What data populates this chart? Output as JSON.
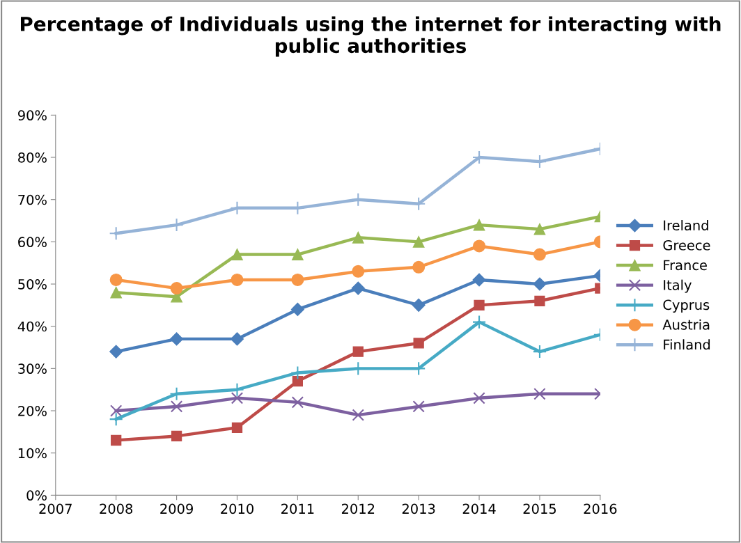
{
  "chart_data": {
    "type": "line",
    "title": "Percentage of Individuals using the internet for interacting with public authorities",
    "x": [
      2008,
      2009,
      2010,
      2011,
      2012,
      2013,
      2014,
      2015,
      2016
    ],
    "xlim": [
      2007,
      2016
    ],
    "xticks": [
      2007,
      2008,
      2009,
      2010,
      2011,
      2012,
      2013,
      2014,
      2015,
      2016
    ],
    "ylim": [
      0,
      90
    ],
    "yticks": [
      {
        "value": 0,
        "label": "0%"
      },
      {
        "value": 10,
        "label": "10%"
      },
      {
        "value": 20,
        "label": "20%"
      },
      {
        "value": 30,
        "label": "30%"
      },
      {
        "value": 40,
        "label": "40%"
      },
      {
        "value": 50,
        "label": "50%"
      },
      {
        "value": 60,
        "label": "60%"
      },
      {
        "value": 70,
        "label": "70%"
      },
      {
        "value": 80,
        "label": "80%"
      },
      {
        "value": 90,
        "label": "90%"
      }
    ],
    "grid": false,
    "legend": "right",
    "line_style": "solid",
    "series": [
      {
        "name": "Ireland",
        "color": "#4a7ebb",
        "marker": "diamond",
        "values": [
          34,
          37,
          37,
          44,
          49,
          45,
          51,
          50,
          52
        ]
      },
      {
        "name": "Greece",
        "color": "#be4b48",
        "marker": "square",
        "values": [
          13,
          14,
          16,
          27,
          34,
          36,
          45,
          46,
          49
        ]
      },
      {
        "name": "France",
        "color": "#98b954",
        "marker": "triangle",
        "values": [
          48,
          47,
          57,
          57,
          61,
          60,
          64,
          63,
          66
        ]
      },
      {
        "name": "Italy",
        "color": "#7d60a0",
        "marker": "x",
        "values": [
          20,
          21,
          23,
          22,
          19,
          21,
          23,
          24,
          24
        ]
      },
      {
        "name": "Cyprus",
        "color": "#46aac5",
        "marker": "cross",
        "values": [
          18,
          24,
          25,
          29,
          30,
          30,
          41,
          34,
          38
        ]
      },
      {
        "name": "Austria",
        "color": "#f79646",
        "marker": "circle",
        "values": [
          51,
          49,
          51,
          51,
          53,
          54,
          59,
          57,
          60
        ]
      },
      {
        "name": "Finland",
        "color": "#95b3d7",
        "marker": "cross",
        "values": [
          62,
          64,
          68,
          68,
          70,
          69,
          80,
          79,
          82
        ]
      }
    ]
  }
}
